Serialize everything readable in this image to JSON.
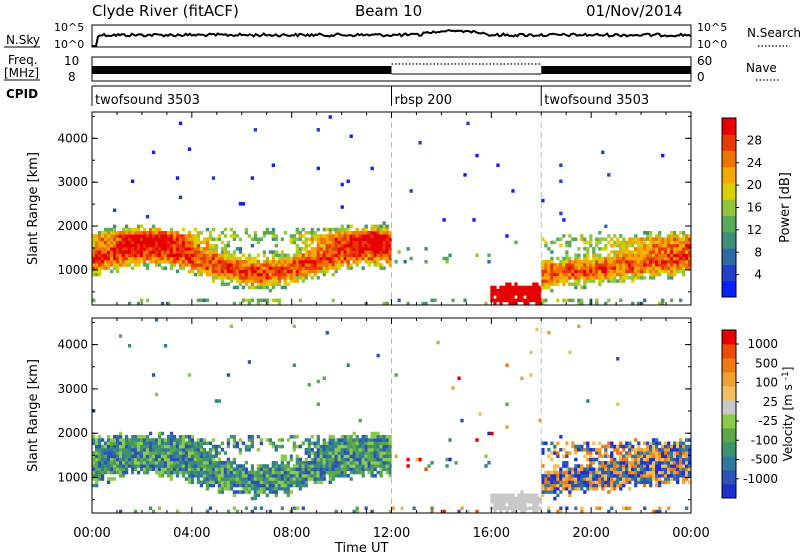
{
  "header": {
    "station": "Clyde River (fitACF)",
    "beam": "Beam 10",
    "date": "01/Nov/2014"
  },
  "top_panels": {
    "nsky_label": "N.Sky",
    "nsky_ticks": [
      "10^5",
      "10^0"
    ],
    "nsearch_label": "N.Search",
    "nsearch_ticks": [
      "10^5",
      "10^0"
    ],
    "freq_label_line1": "Freq.",
    "freq_label_line2": "[MHz]",
    "freq_ticks": [
      "10",
      "8"
    ],
    "nave_label": "Nave",
    "nave_ticks": [
      "60",
      "0"
    ],
    "cpid_label": "CPID",
    "cpid_segments": [
      {
        "label": "twofsound 3503",
        "start_h": 0
      },
      {
        "label": "rbsp 200",
        "start_h": 12
      },
      {
        "label": "twofsound 3503",
        "start_h": 18
      }
    ]
  },
  "chart_data": [
    {
      "type": "heatmap",
      "ylabel": "Slant Range [km]",
      "y_ticks": [
        "4000",
        "3000",
        "2000",
        "1000"
      ],
      "y_tick_values": [
        4000,
        3000,
        2000,
        1000
      ],
      "ylim": [
        200,
        4600
      ],
      "xlim": [
        0,
        24
      ],
      "colorbar": {
        "label": "Power [dB]",
        "ticks": [
          "28",
          "24",
          "20",
          "16",
          "12",
          "8",
          "4"
        ],
        "tick_values": [
          28,
          24,
          20,
          16,
          12,
          8,
          4
        ],
        "range": [
          0,
          32
        ],
        "colors": [
          "#0a1fff",
          "#2440c8",
          "#2f6aa6",
          "#3f8f78",
          "#5aa85a",
          "#93c63c",
          "#d9d000",
          "#f4a800",
          "#f07400",
          "#e83a00",
          "#e80000"
        ]
      }
    },
    {
      "type": "heatmap",
      "ylabel": "Slant Range [km]",
      "y_ticks": [
        "4000",
        "3000",
        "2000",
        "1000"
      ],
      "y_tick_values": [
        4000,
        3000,
        2000,
        1000
      ],
      "ylim": [
        200,
        4600
      ],
      "xlim": [
        0,
        24
      ],
      "colorbar": {
        "label": "Velocity",
        "label_units": "[m s",
        "label_exp": "-1",
        "label_close": "]",
        "ticks": [
          "1000",
          "500",
          "100",
          "25",
          "-25",
          "-100",
          "-500",
          "-1000"
        ],
        "colors": [
          "#1e2fd0",
          "#2c52b8",
          "#2f7a9a",
          "#3f9270",
          "#5aa84a",
          "#8ccb4a",
          "#c8c8c8",
          "#f2c060",
          "#f0a030",
          "#ee7a10",
          "#ec4a00",
          "#e80000"
        ]
      }
    }
  ],
  "x_axis": {
    "ticks": [
      "00:00",
      "04:00",
      "08:00",
      "12:00",
      "16:00",
      "20:00",
      "00:00"
    ],
    "label": "Time UT"
  }
}
